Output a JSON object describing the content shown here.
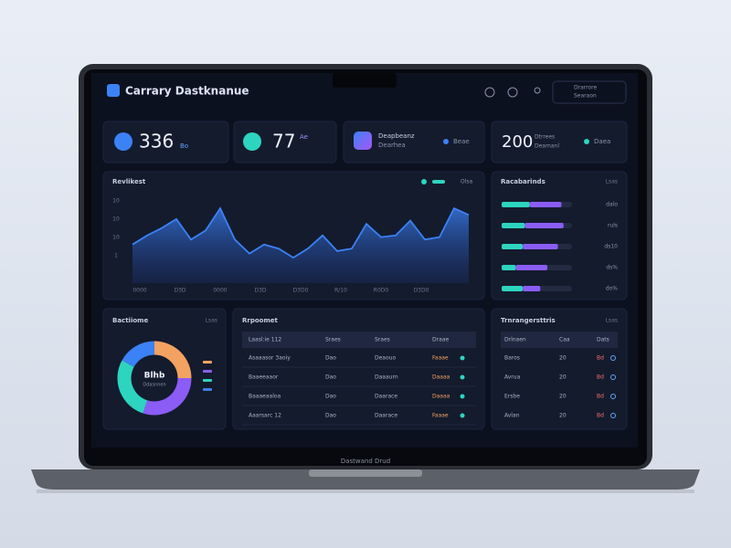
{
  "header": {
    "title": "Carrary Dastknanue",
    "menu": [
      "Drarrore",
      "Searaon"
    ]
  },
  "stats": [
    {
      "value": "336",
      "label": "Bo"
    },
    {
      "value": "77",
      "label": "Ae"
    },
    {
      "value": "Deapbeanz",
      "label": "Dearhea",
      "tag": "Beae"
    },
    {
      "value": "200",
      "label": "Dtrrees",
      "sub": "Deamanl",
      "tag": "Daea"
    }
  ],
  "chart": {
    "type": "area",
    "title": "Revlikest",
    "legend": "Olsa",
    "color": "#3b82f6",
    "y_labels": [
      "10",
      "10",
      "10",
      "1"
    ],
    "x_labels": [
      "0000",
      "D3D",
      "0000",
      "D3D",
      "D3D0",
      "R/10",
      "R0D0",
      "D3D0"
    ],
    "ylim": [
      0,
      100
    ],
    "values": [
      47,
      58,
      67,
      78,
      53,
      64,
      91,
      53,
      36,
      47,
      42,
      31,
      42,
      58,
      39,
      42,
      72,
      56,
      58,
      76,
      53,
      56,
      91,
      83
    ]
  },
  "progress": {
    "title": "Racabarinds",
    "tag": "Lsas",
    "rows": [
      {
        "label": "dalo",
        "values": [
          40,
          45
        ]
      },
      {
        "label": "ruls",
        "values": [
          33,
          55
        ]
      },
      {
        "label": "ds10",
        "values": [
          30,
          50
        ]
      },
      {
        "label": "ds%",
        "values": [
          20,
          45
        ]
      },
      {
        "label": "do%",
        "values": [
          30,
          25
        ]
      }
    ],
    "colors": [
      "#2dd4bf",
      "#8b5cf6"
    ]
  },
  "donut": {
    "title": "Bactiiome",
    "tag": "Lsas",
    "center": "Blhb",
    "center_sub": "Ddasnnen",
    "values": [
      25,
      30,
      28,
      17
    ],
    "colors": [
      "#f4a261",
      "#8b5cf6",
      "#2dd4bf",
      "#3b82f6"
    ]
  },
  "table": {
    "title": "Rrpoomet",
    "header": [
      "Laasl:ie 112",
      "Sraes",
      "Sraes",
      "Draae"
    ],
    "rows": [
      [
        "Asaaasor 3aoiy",
        "Dao",
        "Deaouo",
        "Faaae"
      ],
      [
        "Baaeeaaor",
        "Dao",
        "Daaaurn",
        "Daaaa"
      ],
      [
        "Baaaeaaloa",
        "Dao",
        "Daarace",
        "Daaaa"
      ],
      [
        "Aaarsarc 12",
        "Dao",
        "Daarace",
        "Faaae"
      ]
    ]
  },
  "side_table": {
    "title": "Trnrangersttris",
    "tag": "Lsas",
    "header": [
      "Drlnaen",
      "Caa",
      "Dats"
    ],
    "rows": [
      [
        "Baros",
        "20",
        "Bd"
      ],
      [
        "Avrua",
        "20",
        "Bd"
      ],
      [
        "Ersbe",
        "20",
        "Bd"
      ],
      [
        "Avlan",
        "20",
        "Bd"
      ]
    ]
  },
  "laptop_label": "Dastwand Drud"
}
